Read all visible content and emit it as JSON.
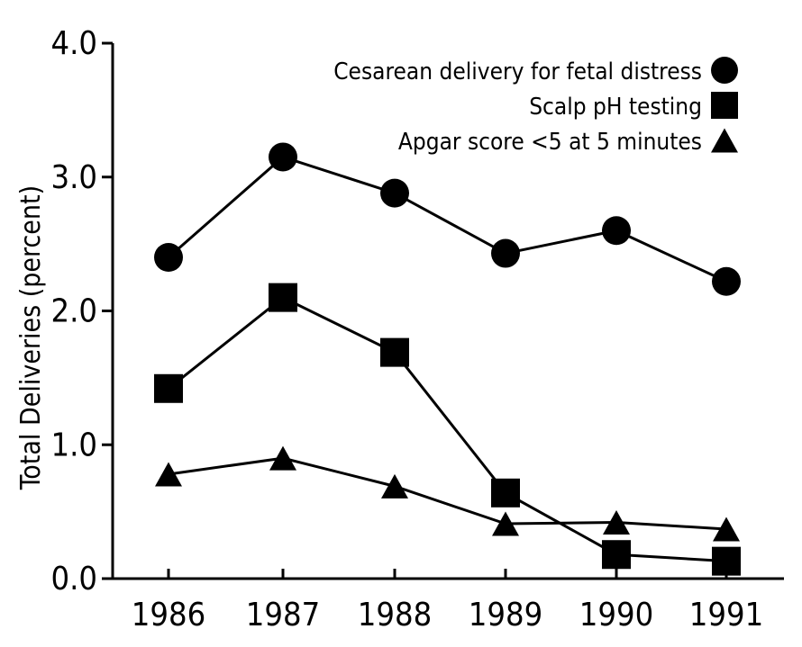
{
  "chart_data": {
    "type": "line",
    "categories": [
      "1986",
      "1987",
      "1988",
      "1989",
      "1990",
      "1991"
    ],
    "x": [
      1986,
      1987,
      1988,
      1989,
      1990,
      1991
    ],
    "ylabel": "Total Deliveries (percent)",
    "ylim": [
      0,
      4
    ],
    "yticks": [
      "0.0",
      "1.0",
      "2.0",
      "3.0",
      "4.0"
    ],
    "legend_position": "top-right",
    "grid": false,
    "series": [
      {
        "name": "Cesarean delivery for fetal distress",
        "marker": "circle",
        "values": [
          2.4,
          3.15,
          2.88,
          2.43,
          2.6,
          2.22
        ]
      },
      {
        "name": "Scalp pH testing",
        "marker": "square",
        "values": [
          1.42,
          2.1,
          1.69,
          0.64,
          0.18,
          0.13
        ]
      },
      {
        "name": "Apgar score <5 at 5 minutes",
        "marker": "triangle",
        "values": [
          0.78,
          0.9,
          0.69,
          0.41,
          0.42,
          0.37
        ]
      }
    ]
  }
}
